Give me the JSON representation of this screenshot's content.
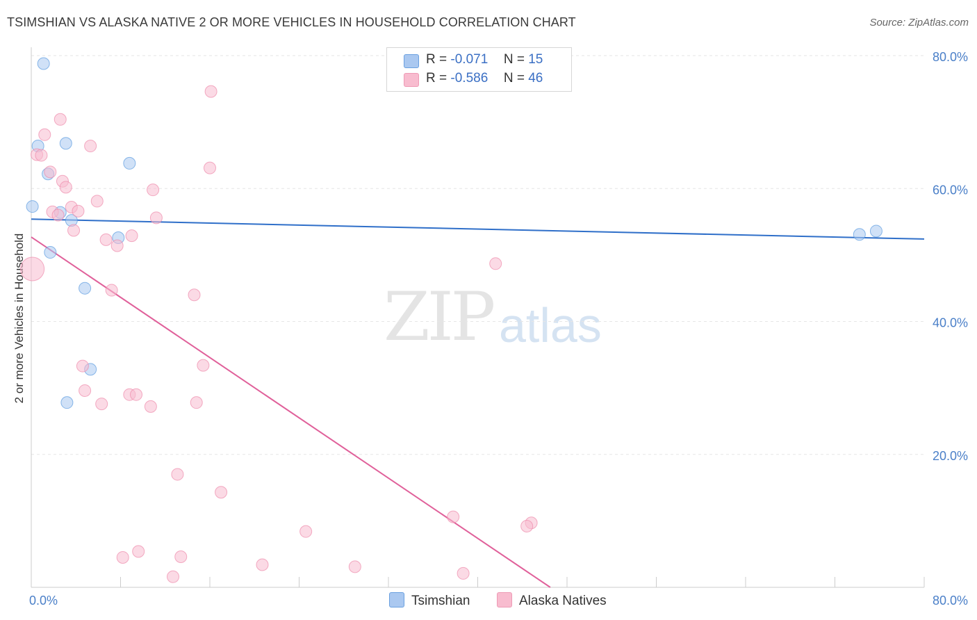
{
  "title": "TSIMSHIAN VS ALASKA NATIVE 2 OR MORE VEHICLES IN HOUSEHOLD CORRELATION CHART",
  "source": "Source: ZipAtlas.com",
  "watermark": {
    "zip": "ZIP",
    "atlas": "atlas"
  },
  "legend": {
    "rows": [
      {
        "r_label": "R =",
        "r_value": "-0.071",
        "n_label": "N =",
        "n_value": "15",
        "color": "#aac8f0"
      },
      {
        "r_label": "R =",
        "r_value": "-0.586",
        "n_label": "N =",
        "n_value": "46",
        "color": "#f8bccf"
      }
    ]
  },
  "bottom_legend": [
    {
      "label": "Tsimshian",
      "color": "#aac8f0"
    },
    {
      "label": "Alaska Natives",
      "color": "#f8bccf"
    }
  ],
  "chart_data": {
    "type": "scatter",
    "title": "TSIMSHIAN VS ALASKA NATIVE 2 OR MORE VEHICLES IN HOUSEHOLD CORRELATION CHART",
    "xlabel": "",
    "ylabel": "2 or more Vehicles in Household",
    "xlim": [
      0,
      80
    ],
    "ylim": [
      0,
      80
    ],
    "x_tick_labels": [
      "0.0%",
      "80.0%"
    ],
    "y_ticks": [
      20,
      40,
      60,
      80
    ],
    "y_tick_labels": [
      "20.0%",
      "40.0%",
      "60.0%",
      "80.0%"
    ],
    "grid": true,
    "legend_position": "top-center",
    "series": [
      {
        "name": "Tsimshian",
        "color": "#5b9be0",
        "fill": "#aac8f0",
        "trend": {
          "x": [
            0,
            80
          ],
          "y": [
            55.4,
            52.4
          ],
          "color": "#2f6fc9"
        },
        "points": [
          {
            "x": 1.1,
            "y": 78.8
          },
          {
            "x": 0.6,
            "y": 66.4
          },
          {
            "x": 3.1,
            "y": 66.8
          },
          {
            "x": 1.5,
            "y": 62.2
          },
          {
            "x": 8.8,
            "y": 63.8
          },
          {
            "x": 0.1,
            "y": 57.3
          },
          {
            "x": 2.6,
            "y": 56.4
          },
          {
            "x": 3.6,
            "y": 55.2
          },
          {
            "x": 7.8,
            "y": 52.6
          },
          {
            "x": 1.7,
            "y": 50.4
          },
          {
            "x": 4.8,
            "y": 45.0
          },
          {
            "x": 5.3,
            "y": 32.8
          },
          {
            "x": 3.2,
            "y": 27.8
          },
          {
            "x": 74.2,
            "y": 53.1
          },
          {
            "x": 75.7,
            "y": 53.6
          }
        ]
      },
      {
        "name": "Alaska Natives",
        "color": "#ee8aab",
        "fill": "#f8bccf",
        "trend": {
          "x": [
            0,
            46.5
          ],
          "y": [
            52.7,
            0
          ],
          "color": "#e0609a"
        },
        "points": [
          {
            "x": 16.1,
            "y": 74.6
          },
          {
            "x": 2.6,
            "y": 70.4
          },
          {
            "x": 1.2,
            "y": 68.1
          },
          {
            "x": 5.3,
            "y": 66.4
          },
          {
            "x": 0.5,
            "y": 65.1
          },
          {
            "x": 0.9,
            "y": 65.0
          },
          {
            "x": 1.7,
            "y": 62.5
          },
          {
            "x": 2.8,
            "y": 61.1
          },
          {
            "x": 3.1,
            "y": 60.2
          },
          {
            "x": 16.0,
            "y": 63.1
          },
          {
            "x": 10.9,
            "y": 59.8
          },
          {
            "x": 5.9,
            "y": 58.1
          },
          {
            "x": 3.6,
            "y": 57.2
          },
          {
            "x": 4.2,
            "y": 56.6
          },
          {
            "x": 1.9,
            "y": 56.5
          },
          {
            "x": 2.4,
            "y": 56.0
          },
          {
            "x": 11.2,
            "y": 55.6
          },
          {
            "x": 3.8,
            "y": 53.7
          },
          {
            "x": 9.0,
            "y": 52.9
          },
          {
            "x": 6.7,
            "y": 52.3
          },
          {
            "x": 7.7,
            "y": 51.4
          },
          {
            "x": 0.1,
            "y": 47.9
          },
          {
            "x": 41.6,
            "y": 48.7
          },
          {
            "x": 7.2,
            "y": 44.7
          },
          {
            "x": 14.6,
            "y": 44.0
          },
          {
            "x": 4.6,
            "y": 33.3
          },
          {
            "x": 15.4,
            "y": 33.4
          },
          {
            "x": 4.8,
            "y": 29.6
          },
          {
            "x": 8.8,
            "y": 29.0
          },
          {
            "x": 9.4,
            "y": 29.0
          },
          {
            "x": 6.3,
            "y": 27.6
          },
          {
            "x": 10.7,
            "y": 27.2
          },
          {
            "x": 14.8,
            "y": 27.8
          },
          {
            "x": 13.1,
            "y": 17.0
          },
          {
            "x": 17.0,
            "y": 14.3
          },
          {
            "x": 37.8,
            "y": 10.6
          },
          {
            "x": 44.8,
            "y": 9.7
          },
          {
            "x": 44.4,
            "y": 9.2
          },
          {
            "x": 24.6,
            "y": 8.4
          },
          {
            "x": 9.6,
            "y": 5.4
          },
          {
            "x": 8.2,
            "y": 4.5
          },
          {
            "x": 13.4,
            "y": 4.6
          },
          {
            "x": 20.7,
            "y": 3.4
          },
          {
            "x": 29.0,
            "y": 3.1
          },
          {
            "x": 12.7,
            "y": 1.6
          },
          {
            "x": 38.7,
            "y": 2.1
          }
        ]
      }
    ]
  }
}
